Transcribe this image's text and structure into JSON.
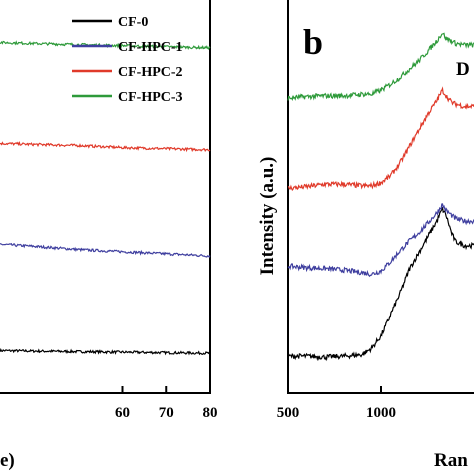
{
  "chart_data": [
    {
      "type": "line",
      "panel": "a",
      "xlabel": "e)",
      "ylabel": "",
      "xlim": [
        32,
        80
      ],
      "x_ticks": [
        60,
        70,
        80
      ],
      "legend": {
        "placement": "top-right",
        "entries": [
          "CF-0",
          "CF-HPC-1",
          "CF-HPC-2",
          "CF-HPC-3"
        ]
      },
      "series": [
        {
          "name": "CF-0",
          "color": "#000000",
          "x": [
            32,
            40,
            50,
            60,
            70,
            80
          ],
          "y": [
            0.05,
            0.045,
            0.04,
            0.035,
            0.03,
            0.025
          ]
        },
        {
          "name": "CF-HPC-1",
          "color": "#3f3f9f",
          "x": [
            32,
            40,
            50,
            60,
            70,
            80
          ],
          "y": [
            1.05,
            1.03,
            1.0,
            0.98,
            0.96,
            0.94
          ]
        },
        {
          "name": "CF-HPC-2",
          "color": "#e03a2a",
          "x": [
            32,
            40,
            50,
            60,
            70,
            80
          ],
          "y": [
            2.0,
            1.99,
            1.98,
            1.96,
            1.95,
            1.94
          ]
        },
        {
          "name": "CF-HPC-3",
          "color": "#2e9a3a",
          "x": [
            32,
            40,
            50,
            60,
            70,
            80
          ],
          "y": [
            2.95,
            2.94,
            2.93,
            2.92,
            2.91,
            2.9
          ]
        }
      ]
    },
    {
      "type": "line",
      "panel": "b",
      "xlabel": "Ran",
      "ylabel": "Intensity (a.u.)",
      "xlim": [
        500,
        1500
      ],
      "x_ticks": [
        500,
        1000
      ],
      "annotations": [
        "D"
      ],
      "series": [
        {
          "name": "CF-0",
          "color": "#000000",
          "x": [
            500,
            600,
            700,
            800,
            900,
            950,
            1000,
            1050,
            1100,
            1150,
            1200,
            1250,
            1300,
            1330,
            1350,
            1380,
            1400,
            1450,
            1500
          ],
          "y": [
            0.1,
            0.1,
            0.09,
            0.1,
            0.12,
            0.2,
            0.35,
            0.6,
            0.85,
            1.15,
            1.35,
            1.55,
            1.75,
            1.9,
            1.82,
            1.6,
            1.5,
            1.45,
            1.45
          ]
        },
        {
          "name": "CF-HPC-1",
          "color": "#3f3f9f",
          "x": [
            500,
            600,
            700,
            800,
            900,
            950,
            1000,
            1050,
            1100,
            1150,
            1200,
            1250,
            1300,
            1330,
            1350,
            1380,
            1400,
            1450,
            1500
          ],
          "y": [
            1.2,
            1.18,
            1.17,
            1.15,
            1.12,
            1.1,
            1.14,
            1.25,
            1.38,
            1.5,
            1.6,
            1.72,
            1.85,
            1.95,
            1.88,
            1.82,
            1.78,
            1.75,
            1.75
          ]
        },
        {
          "name": "CF-HPC-2",
          "color": "#e03a2a",
          "x": [
            500,
            600,
            700,
            800,
            900,
            950,
            1000,
            1050,
            1100,
            1150,
            1200,
            1250,
            1300,
            1330,
            1350,
            1380,
            1400,
            1450,
            1500
          ],
          "y": [
            2.15,
            2.17,
            2.2,
            2.2,
            2.18,
            2.18,
            2.22,
            2.3,
            2.45,
            2.65,
            2.85,
            3.05,
            3.22,
            3.35,
            3.28,
            3.2,
            3.18,
            3.15,
            3.15
          ]
        },
        {
          "name": "CF-HPC-3",
          "color": "#2e9a3a",
          "x": [
            500,
            600,
            700,
            800,
            900,
            950,
            1000,
            1050,
            1100,
            1150,
            1200,
            1250,
            1300,
            1330,
            1350,
            1380,
            1400,
            1450,
            1500
          ],
          "y": [
            3.25,
            3.27,
            3.28,
            3.28,
            3.3,
            3.3,
            3.35,
            3.42,
            3.5,
            3.6,
            3.7,
            3.82,
            3.95,
            4.05,
            3.98,
            3.95,
            3.92,
            3.9,
            3.9
          ]
        }
      ]
    }
  ]
}
